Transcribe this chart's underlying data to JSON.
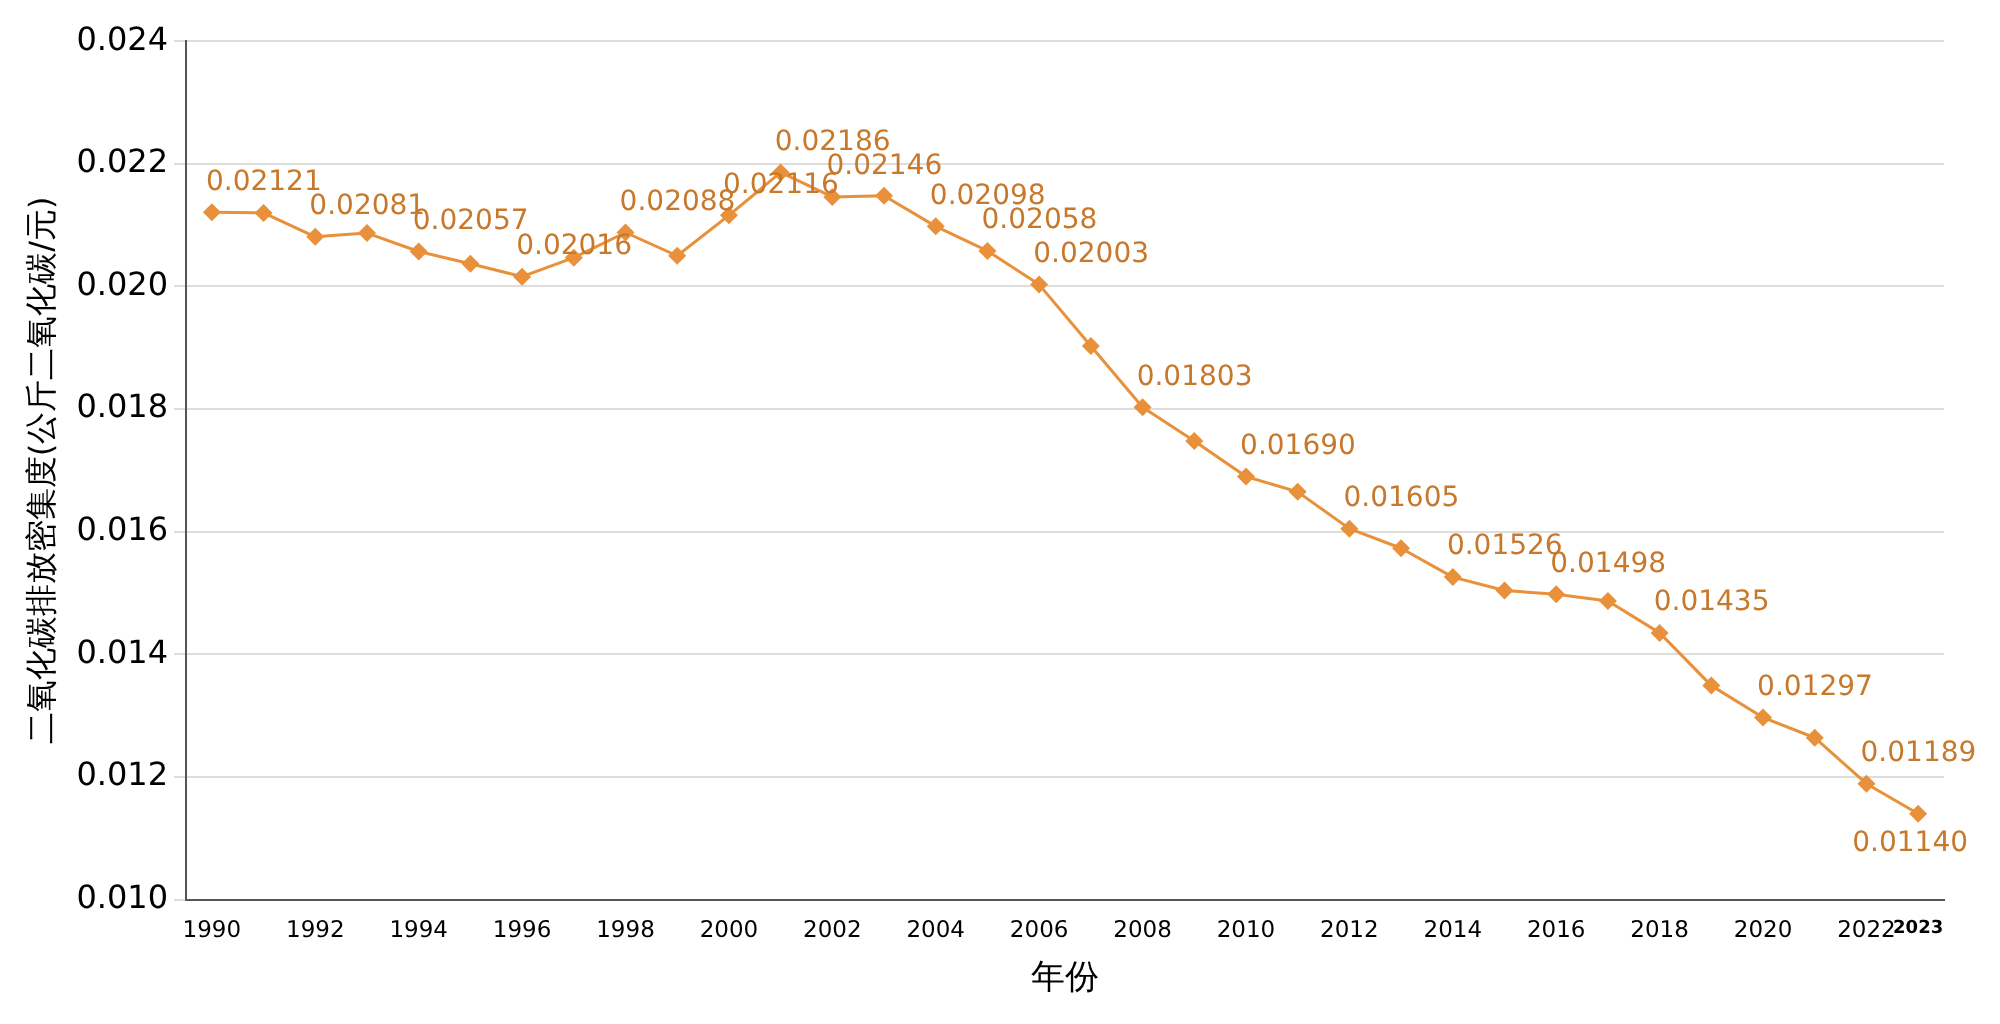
{
  "chart_data": {
    "type": "line",
    "xlabel": "年份",
    "ylabel": "二氧化碳排放密集度(公斤二氧化碳/元)",
    "categories": [
      "1990",
      null,
      "1992",
      null,
      "1994",
      null,
      "1996",
      null,
      "1998",
      null,
      "2000",
      null,
      "2002",
      null,
      "2004",
      null,
      "2006",
      null,
      "2008",
      null,
      "2010",
      null,
      "2012",
      null,
      "2014",
      null,
      "2016",
      null,
      "2018",
      null,
      "2020",
      null,
      "2022",
      "2023"
    ],
    "series": [
      {
        "color": "#e8913a",
        "values": [
          0.02121,
          0.0212,
          0.02081,
          0.02087,
          0.02057,
          0.02037,
          0.02016,
          0.02047,
          0.02088,
          0.0205,
          0.02116,
          0.02186,
          0.02146,
          0.02148,
          0.02098,
          0.02058,
          0.02003,
          0.01903,
          0.01803,
          0.01748,
          0.0169,
          0.01665,
          0.01605,
          0.01573,
          0.01526,
          0.01504,
          0.01498,
          0.01487,
          0.01435,
          0.01349,
          0.01297,
          0.01264,
          0.01189,
          0.0114
        ],
        "value_labels": [
          "0.02121",
          null,
          "0.02081",
          null,
          "0.02057",
          null,
          "0.02016",
          null,
          "0.02088",
          null,
          "0.02116",
          "0.02186",
          "0.02146",
          null,
          "0.02098",
          "0.02058",
          "0.02003",
          null,
          "0.01803",
          null,
          "0.01690",
          null,
          "0.01605",
          null,
          "0.01526",
          null,
          "0.01498",
          null,
          "0.01435",
          null,
          "0.01297",
          null,
          "0.01189",
          "0.01140"
        ]
      }
    ],
    "ylim": [
      0.01,
      0.024
    ],
    "yticks": [
      {
        "value": 0.01,
        "label": "0.010"
      },
      {
        "value": 0.012,
        "label": "0.012"
      },
      {
        "value": 0.014,
        "label": "0.014"
      },
      {
        "value": 0.016,
        "label": "0.016"
      },
      {
        "value": 0.018,
        "label": "0.018"
      },
      {
        "value": 0.02,
        "label": "0.020"
      },
      {
        "value": 0.022,
        "label": "0.022"
      },
      {
        "value": 0.024,
        "label": "0.024"
      }
    ],
    "grid": "y",
    "legend": false,
    "marker": "diamond",
    "line_style": "solid"
  }
}
